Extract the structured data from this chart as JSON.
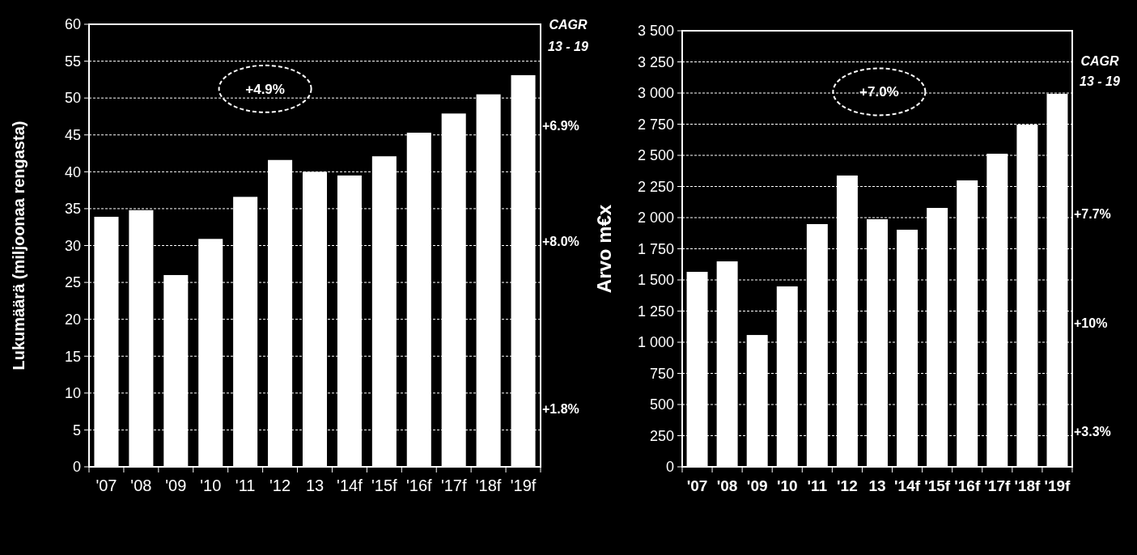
{
  "chart_data": [
    {
      "type": "bar",
      "ylabel": "Lukumäärä (miljoonaa rengasta)",
      "categories": [
        "'07",
        "'08",
        "'09",
        "'10",
        "'11",
        "'12",
        "13",
        "'14f",
        "'15f",
        "'16f",
        "'17f",
        "'18f",
        "'19f"
      ],
      "values": [
        33.9,
        34.8,
        26.0,
        30.9,
        36.6,
        41.6,
        40.0,
        39.5,
        42.1,
        45.3,
        47.9,
        50.5,
        53.1
      ],
      "color": "#ffffff",
      "ylim": [
        0,
        60
      ],
      "yticks": [
        0,
        5,
        10,
        15,
        20,
        25,
        30,
        35,
        40,
        45,
        50,
        55,
        60
      ],
      "grid": "y",
      "annotations": [
        "+4.9%",
        "CAGR",
        "13 - 19",
        "+6.9%",
        "+8.0%",
        "+1.8%"
      ]
    },
    {
      "type": "bar",
      "ylabel": "Arvo m€x",
      "categories": [
        "'07",
        "'08",
        "'09",
        "'10",
        "'11",
        "'12",
        "13",
        "'14f",
        "'15f",
        "'16f",
        "'17f",
        "'18f",
        "'19f"
      ],
      "values": [
        1565,
        1649,
        1058,
        1448,
        1948,
        2338,
        1987,
        1903,
        2078,
        2299,
        2513,
        2747,
        2994
      ],
      "color": "#ffffff",
      "ylim": [
        0,
        3500
      ],
      "yticks": [
        0,
        250,
        500,
        750,
        {
          "value": 1000,
          "label": "1 000"
        },
        {
          "value": 1250,
          "label": "1 250"
        },
        {
          "value": 1500,
          "label": "1 500"
        },
        {
          "value": 1750,
          "label": "1 750"
        },
        {
          "value": 2000,
          "label": "2 000"
        },
        {
          "value": 2250,
          "label": "2 250"
        },
        {
          "value": 2500,
          "label": "2 500"
        },
        {
          "value": 2750,
          "label": "2 750"
        },
        {
          "value": 3000,
          "label": "3 000"
        },
        {
          "value": 3250,
          "label": "3 250"
        },
        {
          "value": 3500,
          "label": "3 500"
        }
      ],
      "grid": "y",
      "annotations": [
        "+7.0%",
        "CAGR",
        "13 - 19",
        "+7.7%",
        "+10%",
        "+3.3%"
      ]
    }
  ]
}
